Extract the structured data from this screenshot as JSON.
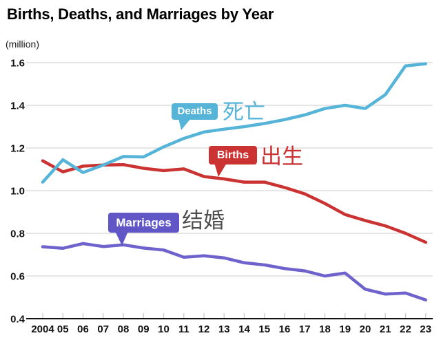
{
  "title": "Births, Deaths, and Marriages by Year",
  "unit_label": "(million)",
  "chart_data": {
    "type": "line",
    "title": "Births, Deaths, and Marriages by Year",
    "ylabel": "(million)",
    "xlabel": "",
    "grid": "horizontal",
    "legend_position": "inline-callouts",
    "ylim": [
      0.4,
      1.6
    ],
    "y_ticks": [
      0.4,
      0.6,
      0.8,
      1.0,
      1.2,
      1.4,
      1.6
    ],
    "years": [
      2004,
      2005,
      2006,
      2007,
      2008,
      2009,
      2010,
      2011,
      2012,
      2013,
      2014,
      2015,
      2016,
      2017,
      2018,
      2019,
      2020,
      2021,
      2022,
      2023
    ],
    "x_tick_labels": [
      "2004",
      "05",
      "06",
      "07",
      "08",
      "09",
      "10",
      "11",
      "12",
      "13",
      "14",
      "15",
      "16",
      "17",
      "18",
      "19",
      "20",
      "21",
      "22",
      "23"
    ],
    "series": [
      {
        "name": "Deaths",
        "name_zh": "死亡",
        "color": "#55b4d7",
        "label_box_color": "#55b4d7",
        "zh_text_color": "#55b4d7",
        "values": [
          1.04,
          1.145,
          1.085,
          1.12,
          1.16,
          1.158,
          1.205,
          1.245,
          1.275,
          1.288,
          1.3,
          1.315,
          1.333,
          1.355,
          1.385,
          1.4,
          1.385,
          1.45,
          1.585,
          1.595
        ]
      },
      {
        "name": "Births",
        "name_zh": "出生",
        "color": "#cb3333",
        "label_box_color": "#cb3333",
        "zh_text_color": "#cb3333",
        "values": [
          1.14,
          1.088,
          1.115,
          1.12,
          1.122,
          1.105,
          1.094,
          1.102,
          1.066,
          1.055,
          1.04,
          1.04,
          1.015,
          0.985,
          0.94,
          0.888,
          0.86,
          0.835,
          0.8,
          0.758
        ]
      },
      {
        "name": "Marriages",
        "name_zh": "结婚",
        "color": "#6e62cc",
        "label_box_color": "#6156c5",
        "zh_text_color": "#4d4d4d",
        "values": [
          0.737,
          0.73,
          0.752,
          0.738,
          0.746,
          0.731,
          0.722,
          0.688,
          0.695,
          0.685,
          0.662,
          0.652,
          0.635,
          0.624,
          0.6,
          0.614,
          0.538,
          0.515,
          0.52,
          0.488
        ]
      }
    ]
  }
}
